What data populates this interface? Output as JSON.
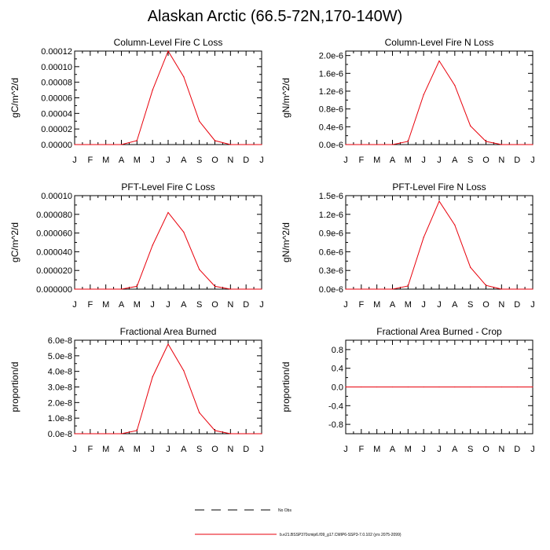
{
  "title": "Alaskan Arctic (66.5-72N,170-140W)",
  "legend": {
    "items": [
      {
        "label": "No Obs",
        "style": "dashed",
        "color": "#000000"
      },
      {
        "label": "b.e21.BSSP370cmip6.f09_g17.CMIP6-SSP3-7.0.102 (yrs 2075-2099)",
        "style": "solid",
        "color": "#e8000b"
      }
    ]
  },
  "chart_data": [
    {
      "type": "line",
      "title": "Column-Level Fire C Loss",
      "ylabel": "gC/m^2/d",
      "categories": [
        "J",
        "F",
        "M",
        "A",
        "M",
        "J",
        "J",
        "A",
        "S",
        "O",
        "N",
        "D",
        "J"
      ],
      "ylim": [
        0,
        0.00012
      ],
      "yticks": [
        "0.00000",
        "0.00002",
        "0.00004",
        "0.00006",
        "0.00008",
        "0.00010",
        "0.00012"
      ],
      "yticks_values": [
        0,
        2e-05,
        4e-05,
        6e-05,
        8e-05,
        0.0001,
        0.00012
      ],
      "series": [
        {
          "color": "#e8000b",
          "values": [
            0,
            0,
            0,
            0,
            5e-06,
            7e-05,
            0.00012,
            8.7e-05,
            3e-05,
            5e-06,
            0,
            0,
            0
          ]
        }
      ]
    },
    {
      "type": "line",
      "title": "Column-Level Fire N Loss",
      "ylabel": "gN/m^2/d",
      "categories": [
        "J",
        "F",
        "M",
        "A",
        "M",
        "J",
        "J",
        "A",
        "S",
        "O",
        "N",
        "D",
        "J"
      ],
      "ylim": [
        0,
        2.1e-06
      ],
      "yticks": [
        "0.0e-6",
        "0.4e-6",
        "0.8e-6",
        "1.2e-6",
        "1.6e-6",
        "2.0e-6"
      ],
      "yticks_values": [
        0,
        4e-07,
        8e-07,
        1.2e-06,
        1.6e-06,
        2e-06
      ],
      "series": [
        {
          "color": "#e8000b",
          "values": [
            0,
            0,
            0,
            0,
            7e-08,
            1.12e-06,
            1.88e-06,
            1.33e-06,
            4.2e-07,
            7e-08,
            0,
            0,
            0
          ]
        }
      ]
    },
    {
      "type": "line",
      "title": "PFT-Level Fire C Loss",
      "ylabel": "gC/m^2/d",
      "categories": [
        "J",
        "F",
        "M",
        "A",
        "M",
        "J",
        "J",
        "A",
        "S",
        "O",
        "N",
        "D",
        "J"
      ],
      "ylim": [
        0,
        0.0001
      ],
      "yticks": [
        "0.000000",
        "0.000020",
        "0.000040",
        "0.000060",
        "0.000080",
        "0.00010"
      ],
      "yticks_values": [
        0,
        2e-05,
        4e-05,
        6e-05,
        8e-05,
        0.0001
      ],
      "series": [
        {
          "color": "#e8000b",
          "values": [
            0,
            0,
            0,
            0,
            3e-06,
            4.7e-05,
            8.2e-05,
            6.1e-05,
            2.1e-05,
            3e-06,
            0,
            0,
            0
          ]
        }
      ]
    },
    {
      "type": "line",
      "title": "PFT-Level Fire N Loss",
      "ylabel": "gN/m^2/d",
      "categories": [
        "J",
        "F",
        "M",
        "A",
        "M",
        "J",
        "J",
        "A",
        "S",
        "O",
        "N",
        "D",
        "J"
      ],
      "ylim": [
        0,
        1.5e-06
      ],
      "yticks": [
        "0.0e-6",
        "0.3e-6",
        "0.6e-6",
        "0.9e-6",
        "1.2e-6",
        "1.5e-6"
      ],
      "yticks_values": [
        0,
        3e-07,
        6e-07,
        9e-07,
        1.2e-06,
        1.5e-06
      ],
      "series": [
        {
          "color": "#e8000b",
          "values": [
            0,
            0,
            0,
            0,
            5e-08,
            8.3e-07,
            1.41e-06,
            1.03e-06,
            3.5e-07,
            6e-08,
            0,
            0,
            0
          ]
        }
      ]
    },
    {
      "type": "line",
      "title": "Fractional Area Burned",
      "ylabel": "proportion/d",
      "categories": [
        "J",
        "F",
        "M",
        "A",
        "M",
        "J",
        "J",
        "A",
        "S",
        "O",
        "N",
        "D",
        "J"
      ],
      "ylim": [
        0,
        6e-08
      ],
      "yticks": [
        "0.0e-8",
        "1.0e-8",
        "2.0e-8",
        "3.0e-8",
        "4.0e-8",
        "5.0e-8",
        "6.0e-8"
      ],
      "yticks_values": [
        0,
        1e-08,
        2e-08,
        3e-08,
        4e-08,
        5e-08,
        6e-08
      ],
      "series": [
        {
          "color": "#e8000b",
          "values": [
            0,
            0,
            0,
            0,
            2e-09,
            3.65e-08,
            5.75e-08,
            4.05e-08,
            1.35e-08,
            2e-09,
            0,
            0,
            0
          ]
        }
      ]
    },
    {
      "type": "line",
      "title": "Fractional Area Burned - Crop",
      "ylabel": "proportion/d",
      "categories": [
        "J",
        "F",
        "M",
        "A",
        "M",
        "J",
        "J",
        "A",
        "S",
        "O",
        "N",
        "D",
        "J"
      ],
      "ylim": [
        -1,
        1
      ],
      "yticks": [
        "-0.8",
        "-0.4",
        "0.0",
        "0.4",
        "0.8"
      ],
      "yticks_values": [
        -0.8,
        -0.4,
        0,
        0.4,
        0.8
      ],
      "series": [
        {
          "color": "#e8000b",
          "values": [
            0,
            0,
            0,
            0,
            0,
            0,
            0,
            0,
            0,
            0,
            0,
            0,
            0
          ]
        }
      ]
    }
  ]
}
